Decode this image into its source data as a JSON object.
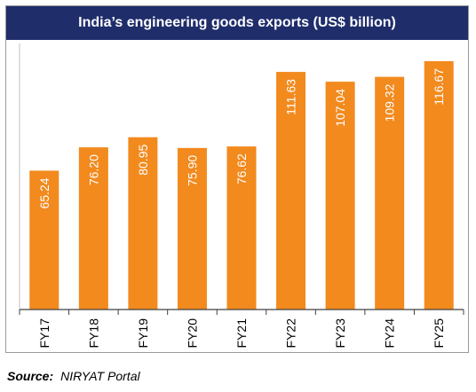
{
  "colors": {
    "title_bg": "#1f2d6b",
    "bar": "#f28a1e",
    "axis": "#404040",
    "bar_label": "#ffffff"
  },
  "chart_data": {
    "type": "bar",
    "title": "India’s engineering goods exports (US$ billion)",
    "categories": [
      "FY17",
      "FY18",
      "FY19",
      "FY20",
      "FY21",
      "FY22",
      "FY23",
      "FY24",
      "FY25"
    ],
    "values": [
      65.24,
      76.2,
      80.95,
      75.9,
      76.62,
      111.63,
      107.04,
      109.32,
      116.67
    ],
    "value_labels": [
      "65.24",
      "76.20",
      "80.95",
      "75.90",
      "76.62",
      "111.63",
      "107.04",
      "109.32",
      "116.67"
    ],
    "ylim": [
      0,
      125
    ],
    "grid": false,
    "legend": "none",
    "xlabel": "",
    "ylabel": ""
  },
  "source": {
    "label": "Source:",
    "text": "NIRYAT Portal"
  }
}
